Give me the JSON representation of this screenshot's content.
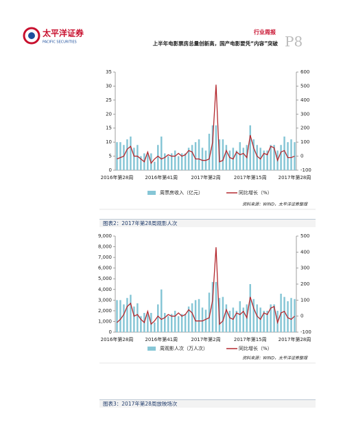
{
  "header": {
    "logo_cn": "太平洋证券",
    "logo_en": "PACIFIC SECURITIES",
    "section": "行业周报",
    "page": "P8",
    "subtitle": "上半年电影票房总量创新高，国产电影要凭“内容”突破"
  },
  "chart_data": [
    {
      "type": "combo",
      "categories": [
        "2016年第28周",
        null,
        null,
        null,
        null,
        null,
        null,
        null,
        null,
        null,
        null,
        null,
        null,
        "2016年第41周",
        null,
        null,
        null,
        null,
        null,
        null,
        null,
        null,
        null,
        null,
        null,
        null,
        "2017年第2周",
        null,
        null,
        null,
        null,
        null,
        null,
        null,
        null,
        null,
        null,
        null,
        null,
        "2017年第15周",
        null,
        null,
        null,
        null,
        null,
        null,
        null,
        null,
        null,
        null,
        null,
        null,
        "2017年第28周"
      ],
      "series": [
        {
          "name": "周票房收入（亿元）",
          "type": "bar",
          "color": "#86c6d6",
          "values": [
            10,
            10,
            9,
            11,
            12,
            8,
            9,
            5,
            6,
            6,
            6,
            3,
            9,
            12,
            6,
            5,
            6,
            7,
            5,
            6,
            6,
            8,
            9,
            10,
            11,
            8,
            7,
            13,
            16,
            16,
            11,
            11,
            9,
            7,
            8,
            7,
            10,
            8,
            9,
            16,
            11,
            9,
            8,
            7,
            7,
            9,
            9,
            7,
            9,
            12,
            10,
            11,
            10
          ]
        },
        {
          "name": "同比增长（%）",
          "type": "line",
          "axis": "y2",
          "color": "#b3272d",
          "values": [
            -20,
            -10,
            0,
            50,
            70,
            0,
            0,
            -20,
            -40,
            30,
            -50,
            -20,
            0,
            -20,
            -10,
            10,
            0,
            0,
            20,
            0,
            10,
            40,
            30,
            -20,
            -20,
            -30,
            -30,
            -20,
            100,
            510,
            -40,
            -30,
            40,
            -10,
            -20,
            30,
            10,
            20,
            -10,
            150,
            60,
            0,
            -20,
            20,
            10,
            70,
            60,
            -30,
            30,
            40,
            -10,
            -10,
            0
          ]
        }
      ],
      "ylim": [
        0,
        35
      ],
      "yticks": [
        0,
        5,
        10,
        15,
        20,
        25,
        30,
        35
      ],
      "y2lim": [
        -100,
        600
      ],
      "y2ticks": [
        -100,
        0,
        100,
        200,
        300,
        400,
        500,
        600
      ],
      "source": "资料来源：WIND，太平洋证券整理"
    },
    {
      "type": "combo",
      "title": "图表2：2017年第28周观影人次",
      "categories": [
        "2016年第28周",
        null,
        null,
        null,
        null,
        null,
        null,
        null,
        null,
        null,
        null,
        null,
        null,
        "2016年第41周",
        null,
        null,
        null,
        null,
        null,
        null,
        null,
        null,
        null,
        null,
        null,
        null,
        "2017年第2周",
        null,
        null,
        null,
        null,
        null,
        null,
        null,
        null,
        null,
        null,
        null,
        null,
        "2017年第15周",
        null,
        null,
        null,
        null,
        null,
        null,
        null,
        null,
        null,
        null,
        null,
        null,
        "2017年第28周"
      ],
      "series": [
        {
          "name": "周观影人次（万人次）",
          "type": "bar",
          "color": "#86c6d6",
          "values": [
            3000,
            3000,
            2600,
            3200,
            3500,
            2400,
            2700,
            1500,
            1800,
            1700,
            1800,
            900,
            2600,
            4000,
            1800,
            1500,
            1700,
            2000,
            1500,
            1700,
            1700,
            2400,
            2700,
            3000,
            3100,
            2300,
            2100,
            3700,
            4700,
            4700,
            3200,
            3300,
            2600,
            2000,
            2300,
            2000,
            2900,
            2300,
            2600,
            4500,
            3100,
            2600,
            2300,
            2000,
            2000,
            2600,
            2600,
            2000,
            3600,
            3300,
            2900,
            3200,
            3100
          ]
        },
        {
          "name": "同比增长（%）",
          "type": "line",
          "axis": "y2",
          "color": "#b3272d",
          "values": [
            -40,
            -20,
            10,
            60,
            80,
            0,
            10,
            -20,
            -40,
            30,
            -50,
            -30,
            0,
            -20,
            -10,
            10,
            0,
            0,
            20,
            0,
            10,
            40,
            20,
            -30,
            -30,
            -30,
            -20,
            -10,
            100,
            430,
            -50,
            -30,
            40,
            -10,
            -20,
            20,
            10,
            30,
            -10,
            120,
            50,
            0,
            -20,
            20,
            10,
            50,
            60,
            -40,
            20,
            30,
            -10,
            -20,
            0
          ]
        }
      ],
      "ylim": [
        0,
        9000
      ],
      "yticks": [
        0,
        {
          "value": 1000,
          "label": "1,000"
        },
        {
          "value": 2000,
          "label": "2,000"
        },
        {
          "value": 3000,
          "label": "3,000"
        },
        {
          "value": 4000,
          "label": "4,000"
        },
        {
          "value": 5000,
          "label": "5,000"
        },
        {
          "value": 6000,
          "label": "6,000"
        },
        {
          "value": 7000,
          "label": "7,000"
        },
        {
          "value": 8000,
          "label": "8,000"
        },
        {
          "value": 9000,
          "label": "9,000"
        }
      ],
      "y2lim": [
        -100,
        500
      ],
      "y2ticks": [
        -100,
        0,
        100,
        200,
        300,
        400,
        500
      ],
      "source": "资料来源：WIND，太平洋证券整理"
    }
  ],
  "figure3": {
    "title": "图表3：2017年第28周放映场次"
  }
}
